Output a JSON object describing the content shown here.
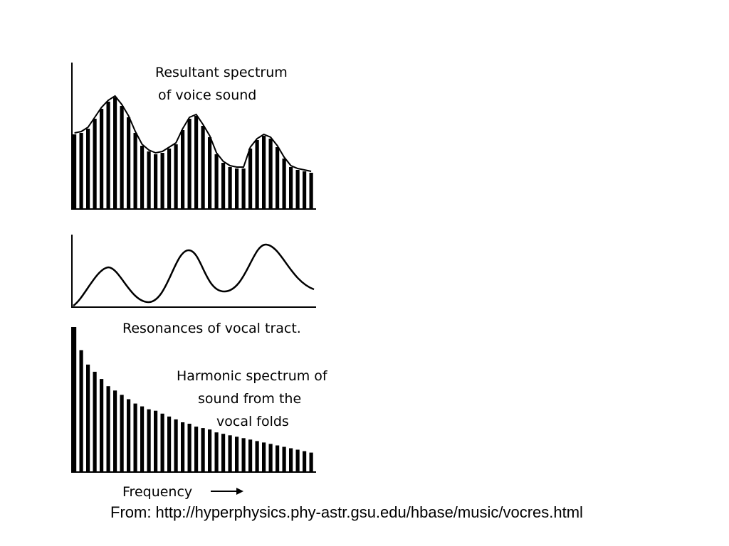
{
  "panels": {
    "resultant": {
      "title_line1": "Resultant spectrum",
      "title_line2": "of voice sound",
      "values": [
        0.52,
        0.53,
        0.56,
        0.63,
        0.7,
        0.75,
        0.78,
        0.72,
        0.64,
        0.53,
        0.44,
        0.4,
        0.38,
        0.39,
        0.42,
        0.45,
        0.55,
        0.63,
        0.65,
        0.58,
        0.5,
        0.38,
        0.32,
        0.29,
        0.28,
        0.28,
        0.42,
        0.48,
        0.51,
        0.49,
        0.43,
        0.35,
        0.29,
        0.27,
        0.26,
        0.25
      ]
    },
    "resonance": {
      "label": "Resonances of vocal tract."
    },
    "harmonic": {
      "label_line1": "Harmonic spectrum of",
      "label_line2": "sound from the",
      "label_line3": "vocal folds",
      "values": [
        1.0,
        0.84,
        0.74,
        0.69,
        0.64,
        0.59,
        0.56,
        0.53,
        0.5,
        0.47,
        0.45,
        0.43,
        0.42,
        0.4,
        0.38,
        0.36,
        0.34,
        0.33,
        0.31,
        0.3,
        0.29,
        0.27,
        0.26,
        0.25,
        0.24,
        0.23,
        0.22,
        0.21,
        0.2,
        0.19,
        0.18,
        0.17,
        0.16,
        0.15,
        0.14,
        0.13
      ]
    },
    "axis": {
      "label": "Frequency"
    }
  },
  "source_caption": "From: http://hyperphysics.phy-astr.gsu.edu/hbase/music/vocres.html",
  "colors": {
    "ink": "#000000",
    "background": "#ffffff"
  }
}
